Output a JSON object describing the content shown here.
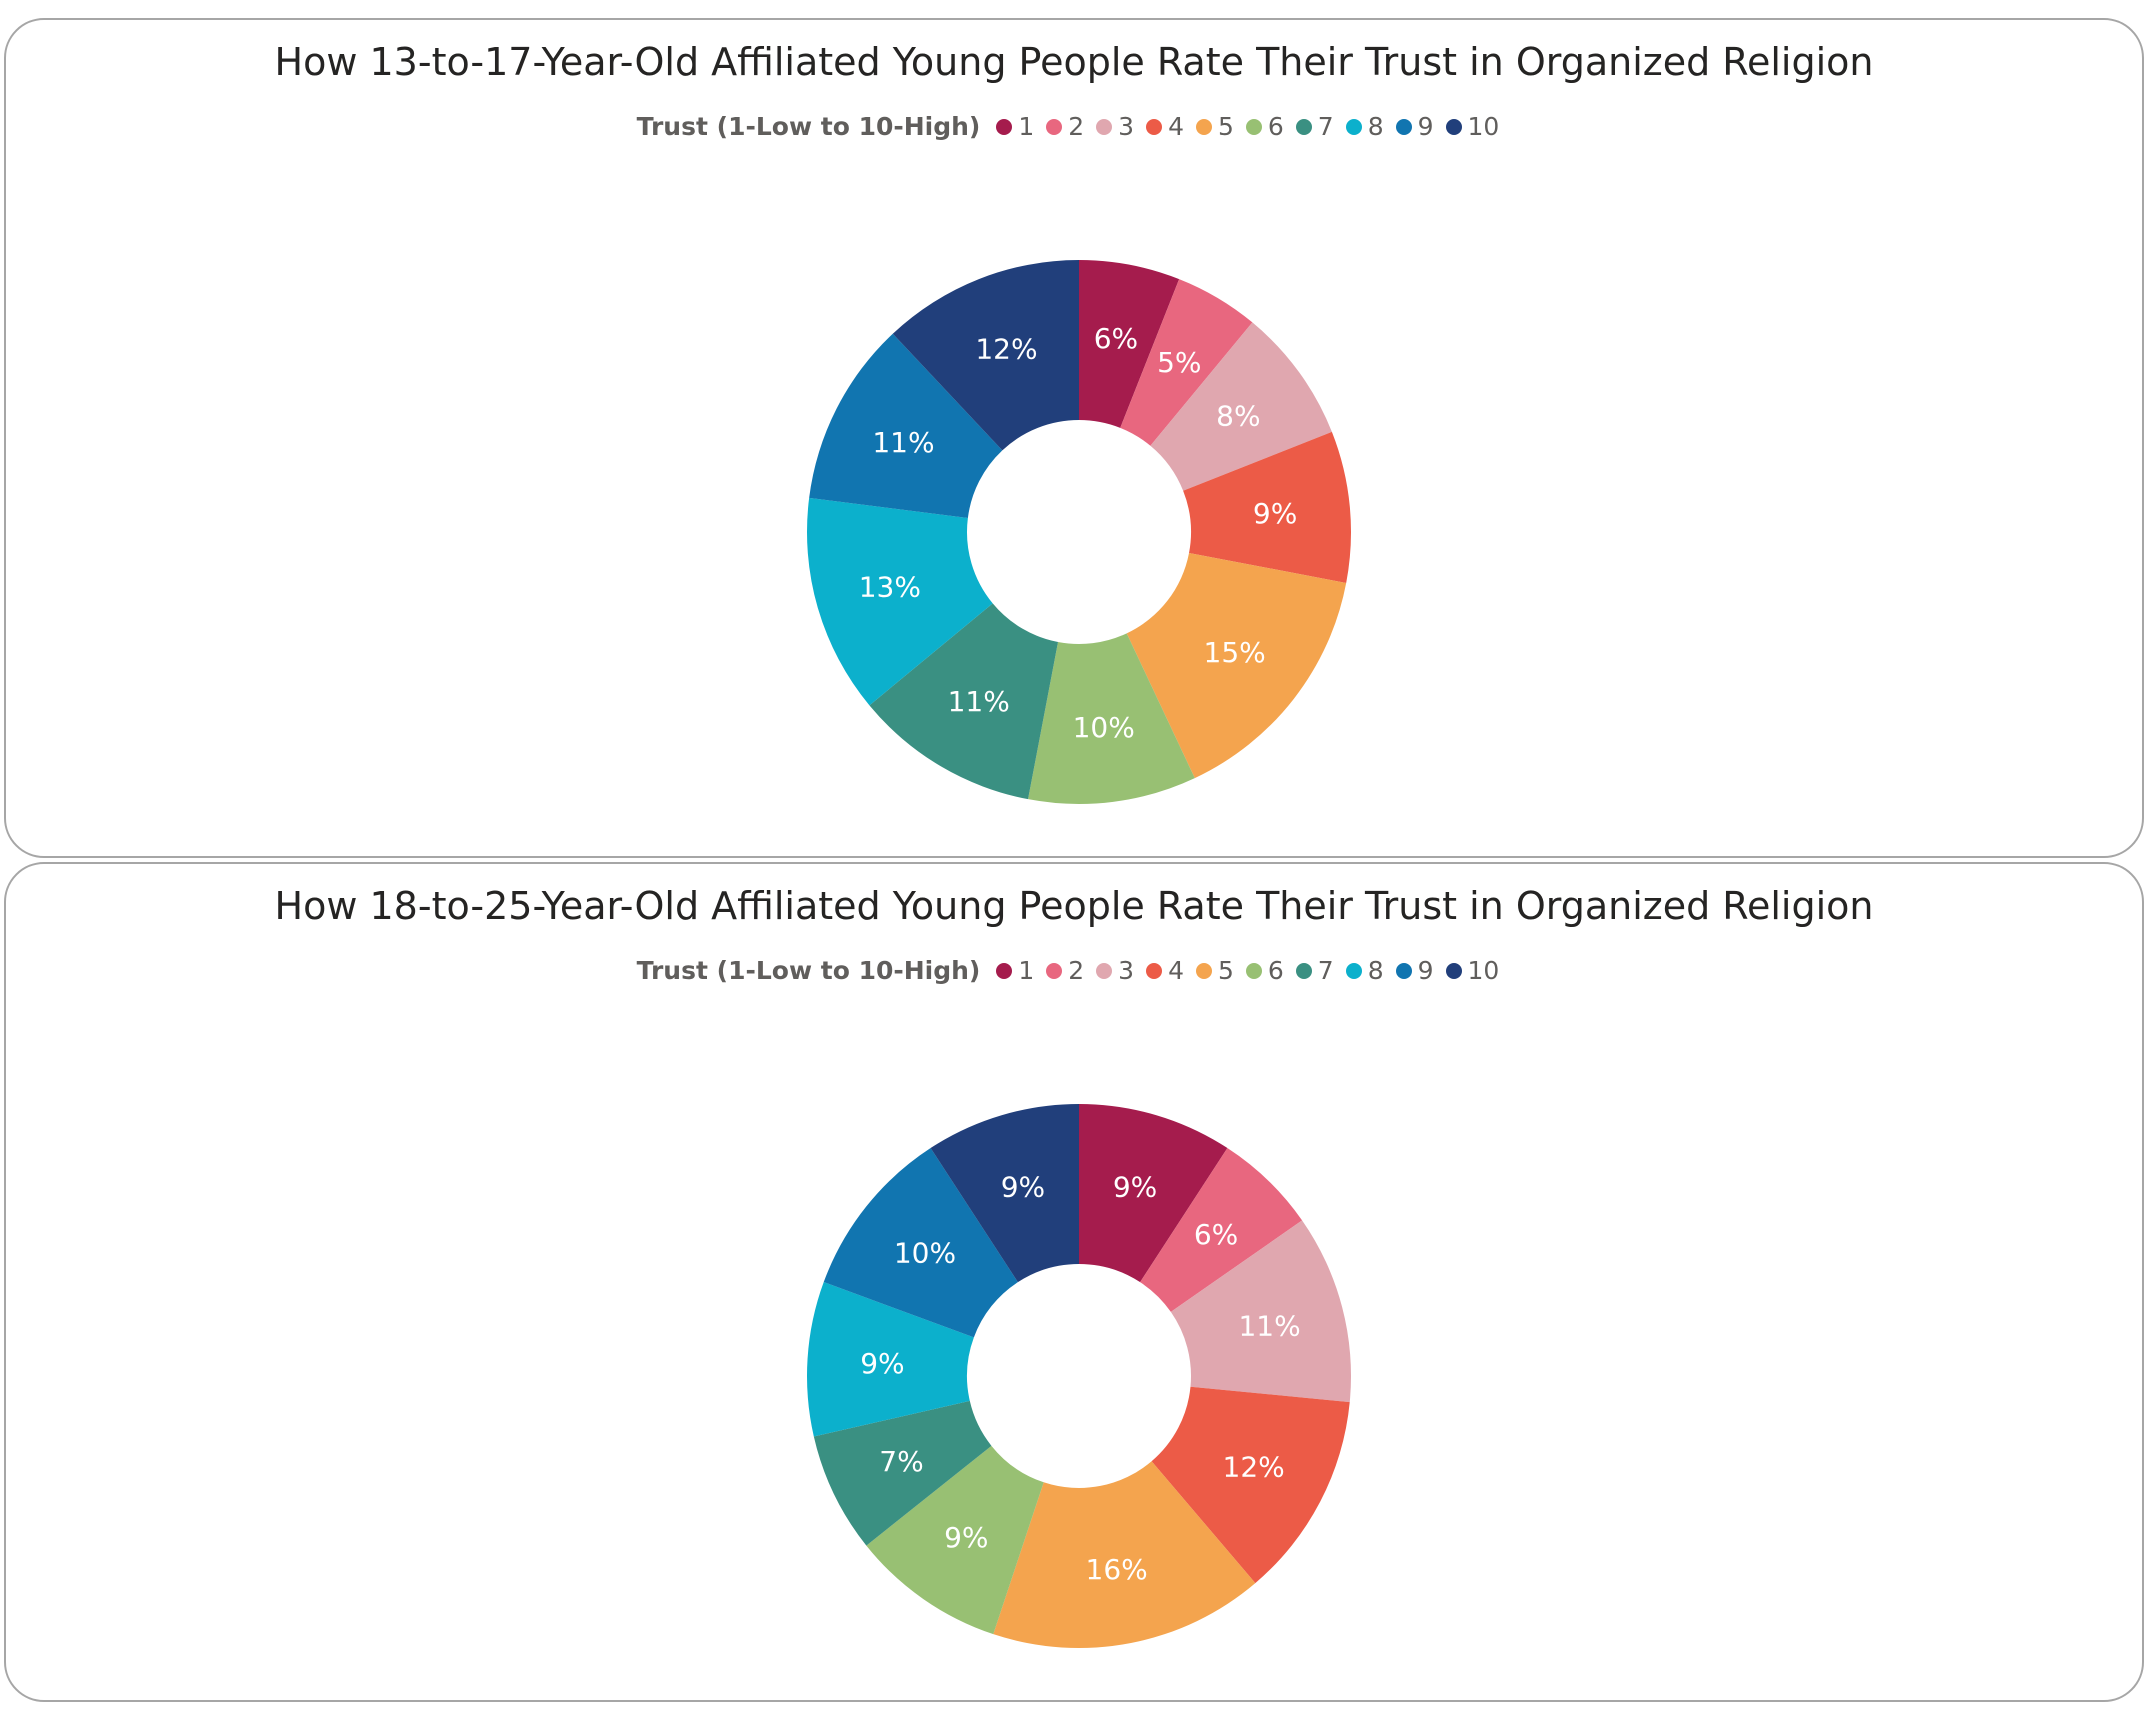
{
  "colors": {
    "1": "#a51c4d",
    "2": "#e8677f",
    "3": "#e0a7af",
    "4": "#ec5b47",
    "5": "#f4a44e",
    "6": "#98c073",
    "7": "#3a9082",
    "8": "#0cb0cc",
    "9": "#1175b0",
    "10": "#213f7b"
  },
  "chart_data": [
    {
      "type": "pie",
      "donut": true,
      "title": "How 13-to-17-Year-Old Affiliated Young People Rate Their Trust in Organized Religion",
      "legend_title": "Trust (1-Low to 10-High)",
      "legend_placement": "top-center",
      "categories": [
        "1",
        "2",
        "3",
        "4",
        "5",
        "6",
        "7",
        "8",
        "9",
        "10"
      ],
      "values": [
        6,
        5,
        8,
        9,
        15,
        10,
        11,
        13,
        11,
        12
      ],
      "labels": [
        "6%",
        "5%",
        "8%",
        "9%",
        "15%",
        "10%",
        "11%",
        "13%",
        "11%",
        "12%"
      ]
    },
    {
      "type": "pie",
      "donut": true,
      "title": "How 18-to-25-Year-Old Affiliated Young People Rate Their Trust in Organized Religion",
      "legend_title": "Trust (1-Low to 10-High)",
      "legend_placement": "top-center",
      "categories": [
        "1",
        "2",
        "3",
        "4",
        "5",
        "6",
        "7",
        "8",
        "9",
        "10"
      ],
      "values": [
        9,
        6,
        11,
        12,
        16,
        9,
        7,
        9,
        10,
        9
      ],
      "labels": [
        "9%",
        "6%",
        "11%",
        "12%",
        "16%",
        "9%",
        "7%",
        "9%",
        "10%",
        "9%"
      ]
    }
  ]
}
